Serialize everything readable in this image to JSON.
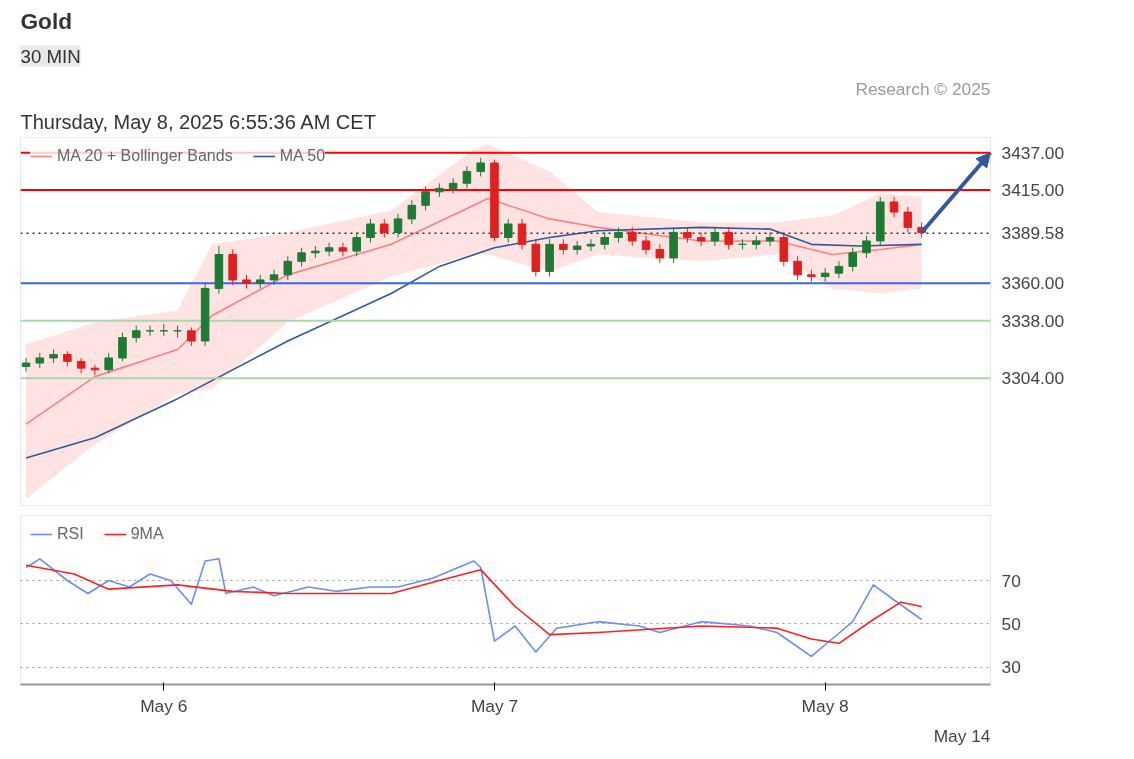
{
  "chart_data": [
    {
      "type": "candlestick",
      "title": "Gold",
      "subtitle": "30 MIN",
      "annotations": [
        "Thursday, May 8, 2025 6:55:36 AM CET",
        "Research © 2025"
      ],
      "x": [
        "2025-05-05T14:00",
        "2025-05-05T15:00",
        "2025-05-05T16:00",
        "2025-05-05T17:00",
        "2025-05-05T18:00",
        "2025-05-05T19:00",
        "2025-05-05T20:00",
        "2025-05-05T21:00",
        "2025-05-05T22:00",
        "2025-05-05T23:00",
        "2025-05-06T00:00",
        "2025-05-06T01:00",
        "2025-05-06T02:00",
        "2025-05-06T03:00",
        "2025-05-06T04:00",
        "2025-05-06T05:00",
        "2025-05-06T06:00",
        "2025-05-06T07:00",
        "2025-05-06T08:00",
        "2025-05-06T09:00",
        "2025-05-06T10:00",
        "2025-05-06T11:00",
        "2025-05-06T12:00",
        "2025-05-06T13:00",
        "2025-05-06T14:00",
        "2025-05-06T15:00",
        "2025-05-06T16:00",
        "2025-05-06T17:00",
        "2025-05-06T18:00",
        "2025-05-06T19:00",
        "2025-05-06T20:00",
        "2025-05-06T21:00",
        "2025-05-06T22:00",
        "2025-05-06T23:00",
        "2025-05-07T00:00",
        "2025-05-07T01:00",
        "2025-05-07T02:00",
        "2025-05-07T03:00",
        "2025-05-07T04:00",
        "2025-05-07T05:00",
        "2025-05-07T06:00",
        "2025-05-07T07:00",
        "2025-05-07T08:00",
        "2025-05-07T09:00",
        "2025-05-07T10:00",
        "2025-05-07T11:00",
        "2025-05-07T12:00",
        "2025-05-07T13:00",
        "2025-05-07T14:00",
        "2025-05-07T15:00",
        "2025-05-07T16:00",
        "2025-05-07T17:00",
        "2025-05-07T18:00",
        "2025-05-07T19:00",
        "2025-05-07T20:00",
        "2025-05-07T21:00",
        "2025-05-07T22:00",
        "2025-05-07T23:00",
        "2025-05-08T00:00",
        "2025-05-08T01:00",
        "2025-05-08T02:00",
        "2025-05-08T03:00",
        "2025-05-08T04:00",
        "2025-05-08T05:00",
        "2025-05-08T06:00",
        "2025-05-08T07:00"
      ],
      "ohlc": [
        [
          3311,
          3316,
          3308,
          3313
        ],
        [
          3313,
          3319,
          3310,
          3316
        ],
        [
          3316,
          3321,
          3313,
          3318
        ],
        [
          3318,
          3320,
          3311,
          3314
        ],
        [
          3314,
          3316,
          3307,
          3310
        ],
        [
          3310,
          3312,
          3306,
          3309
        ],
        [
          3309,
          3319,
          3307,
          3316
        ],
        [
          3316,
          3331,
          3314,
          3328
        ],
        [
          3328,
          3335,
          3325,
          3332
        ],
        [
          3332,
          3335,
          3329,
          3332
        ],
        [
          3332,
          3336,
          3329,
          3332
        ],
        [
          3332,
          3335,
          3328,
          3332
        ],
        [
          3332,
          3334,
          3323,
          3326
        ],
        [
          3326,
          3360,
          3323,
          3357
        ],
        [
          3357,
          3382,
          3354,
          3377
        ],
        [
          3377,
          3380,
          3359,
          3362
        ],
        [
          3362,
          3365,
          3357,
          3360
        ],
        [
          3360,
          3365,
          3357,
          3362
        ],
        [
          3362,
          3368,
          3359,
          3365
        ],
        [
          3365,
          3376,
          3362,
          3373
        ],
        [
          3373,
          3381,
          3370,
          3378
        ],
        [
          3378,
          3382,
          3375,
          3379
        ],
        [
          3379,
          3384,
          3376,
          3381
        ],
        [
          3381,
          3384,
          3376,
          3379
        ],
        [
          3379,
          3390,
          3376,
          3387
        ],
        [
          3387,
          3398,
          3384,
          3395
        ],
        [
          3395,
          3398,
          3387,
          3390
        ],
        [
          3390,
          3401,
          3387,
          3398
        ],
        [
          3398,
          3409,
          3395,
          3406
        ],
        [
          3406,
          3417,
          3403,
          3414
        ],
        [
          3414,
          3419,
          3411,
          3416
        ],
        [
          3416,
          3422,
          3413,
          3419
        ],
        [
          3419,
          3429,
          3416,
          3426
        ],
        [
          3426,
          3434,
          3423,
          3431
        ],
        [
          3431,
          3433,
          3385,
          3387
        ],
        [
          3387,
          3398,
          3384,
          3395
        ],
        [
          3395,
          3398,
          3380,
          3383
        ],
        [
          3383,
          3386,
          3364,
          3367
        ],
        [
          3367,
          3386,
          3364,
          3383
        ],
        [
          3383,
          3386,
          3377,
          3380
        ],
        [
          3380,
          3385,
          3377,
          3382
        ],
        [
          3382,
          3386,
          3379,
          3383
        ],
        [
          3383,
          3390,
          3380,
          3387
        ],
        [
          3387,
          3393,
          3384,
          3390
        ],
        [
          3390,
          3393,
          3382,
          3385
        ],
        [
          3385,
          3388,
          3377,
          3380
        ],
        [
          3380,
          3383,
          3372,
          3375
        ],
        [
          3375,
          3393,
          3372,
          3390
        ],
        [
          3390,
          3393,
          3384,
          3387
        ],
        [
          3387,
          3390,
          3382,
          3385
        ],
        [
          3385,
          3393,
          3382,
          3390
        ],
        [
          3390,
          3393,
          3380,
          3383
        ],
        [
          3383,
          3386,
          3380,
          3383
        ],
        [
          3383,
          3388,
          3380,
          3385
        ],
        [
          3385,
          3390,
          3382,
          3387
        ],
        [
          3387,
          3390,
          3370,
          3373
        ],
        [
          3373,
          3376,
          3362,
          3365
        ],
        [
          3365,
          3368,
          3361,
          3364
        ],
        [
          3364,
          3369,
          3361,
          3366
        ],
        [
          3366,
          3373,
          3363,
          3370
        ],
        [
          3370,
          3381,
          3367,
          3378
        ],
        [
          3378,
          3388,
          3375,
          3385
        ],
        [
          3385,
          3411,
          3382,
          3408
        ],
        [
          3408,
          3411,
          3399,
          3402
        ],
        [
          3402,
          3405,
          3390,
          3393
        ],
        [
          3393,
          3396,
          3387,
          3390
        ]
      ],
      "series": [
        {
          "name": "MA 20 + Bollinger Bands",
          "type": "line",
          "color": "#ff8080",
          "x": [
            "2025-05-05T14:00",
            "2025-05-05T19:00",
            "2025-05-06T01:00",
            "2025-05-06T03:30",
            "2025-05-06T09:00",
            "2025-05-06T16:30",
            "2025-05-06T22:30",
            "2025-05-06T23:30",
            "2025-05-07T04:00",
            "2025-05-07T07:30",
            "2025-05-07T15:00",
            "2025-05-07T20:30",
            "2025-05-08T00:30",
            "2025-05-08T04:00",
            "2025-05-08T07:00"
          ],
          "values": [
            3277,
            3305,
            3321,
            3341,
            3365,
            3383,
            3406,
            3410,
            3398,
            3393,
            3385,
            3385,
            3377,
            3380,
            3383
          ],
          "upper": [
            3324,
            3337,
            3344,
            3383,
            3390,
            3403,
            3439,
            3442,
            3426,
            3402,
            3396,
            3396,
            3400,
            3413,
            3411
          ],
          "lower": [
            3233,
            3265,
            3295,
            3298,
            3337,
            3364,
            3377,
            3377,
            3367,
            3377,
            3373,
            3377,
            3357,
            3354,
            3357
          ]
        },
        {
          "name": "MA 50",
          "type": "line",
          "color": "#2f5a9e",
          "x": [
            "2025-05-05T14:00",
            "2025-05-05T19:00",
            "2025-05-06T01:00",
            "2025-05-06T09:00",
            "2025-05-06T16:30",
            "2025-05-06T20:00",
            "2025-05-07T00:00",
            "2025-05-07T04:00",
            "2025-05-07T07:30",
            "2025-05-07T15:00",
            "2025-05-07T20:00",
            "2025-05-07T23:00",
            "2025-05-08T02:30",
            "2025-05-08T07:00"
          ],
          "values": [
            3257,
            3269,
            3292,
            3326,
            3354,
            3370,
            3381,
            3387,
            3391,
            3393,
            3392,
            3383,
            3382,
            3383
          ]
        }
      ],
      "ref_lines": [
        {
          "axis": "y",
          "value": 3437,
          "color": "#ff0000",
          "line_style": "solid"
        },
        {
          "axis": "y",
          "value": 3415,
          "color": "#ff0000",
          "line_style": "solid"
        },
        {
          "axis": "y",
          "value": 3389.58,
          "color": "#333333",
          "line_style": "dotted"
        },
        {
          "axis": "y",
          "value": 3360,
          "color": "#3366ff",
          "line_style": "solid"
        },
        {
          "axis": "y",
          "value": 3338,
          "color": "#a8d8a8",
          "line_style": "solid"
        },
        {
          "axis": "y",
          "value": 3304,
          "color": "#a8d8a8",
          "line_style": "solid"
        }
      ],
      "xlim": [
        "2025-05-05T13:36",
        "2025-05-08T12:00"
      ],
      "ylim": [
        3229,
        3446
      ],
      "yticks": [
        {
          "value": 3437,
          "label": "3437.00"
        },
        {
          "value": 3415,
          "label": "3415.00"
        },
        {
          "value": 3389.58,
          "label": "3389.58"
        },
        {
          "value": 3360,
          "label": "3360.00"
        },
        {
          "value": 3338,
          "label": "3338.00"
        },
        {
          "value": 3304,
          "label": "3304.00"
        }
      ],
      "tick_labels": "y",
      "grid": false,
      "legend": "top left"
    },
    {
      "type": "line",
      "annotations": [
        "May 14"
      ],
      "series": [
        {
          "name": "RSI",
          "color": "#6b8ff0",
          "x": [
            "2025-05-05T14:00",
            "2025-05-05T15:00",
            "2025-05-05T17:00",
            "2025-05-05T18:30",
            "2025-05-05T20:00",
            "2025-05-05T21:30",
            "2025-05-05T23:00",
            "2025-05-06T00:30",
            "2025-05-06T02:00",
            "2025-05-06T03:00",
            "2025-05-06T04:00",
            "2025-05-06T04:30",
            "2025-05-06T06:30",
            "2025-05-06T08:00",
            "2025-05-06T10:30",
            "2025-05-06T12:30",
            "2025-05-06T15:00",
            "2025-05-06T17:00",
            "2025-05-06T19:30",
            "2025-05-06T22:30",
            "2025-05-06T23:00",
            "2025-05-07T00:00",
            "2025-05-07T01:30",
            "2025-05-07T03:00",
            "2025-05-07T04:30",
            "2025-05-07T07:30",
            "2025-05-07T10:30",
            "2025-05-07T12:00",
            "2025-05-07T15:00",
            "2025-05-07T18:30",
            "2025-05-07T20:30",
            "2025-05-07T23:00",
            "2025-05-08T00:30",
            "2025-05-08T02:00",
            "2025-05-08T03:30",
            "2025-05-08T05:00",
            "2025-05-08T07:00"
          ],
          "values": [
            76,
            80,
            70,
            64,
            70,
            67,
            73,
            70,
            59,
            79,
            80,
            64,
            67,
            63,
            67,
            65,
            67,
            67,
            71,
            79,
            76,
            42,
            49,
            37,
            48,
            51,
            49,
            46,
            51,
            49,
            46,
            35,
            43,
            51,
            68,
            61,
            52
          ]
        },
        {
          "name": "9MA",
          "color": "#ff2020",
          "x": [
            "2025-05-05T14:00",
            "2025-05-05T17:30",
            "2025-05-05T20:00",
            "2025-05-06T01:00",
            "2025-05-06T05:00",
            "2025-05-06T09:00",
            "2025-05-06T16:30",
            "2025-05-06T20:00",
            "2025-05-06T23:00",
            "2025-05-07T01:30",
            "2025-05-07T04:00",
            "2025-05-07T07:30",
            "2025-05-07T15:00",
            "2025-05-07T20:30",
            "2025-05-07T23:00",
            "2025-05-08T01:00",
            "2025-05-08T03:30",
            "2025-05-08T05:30",
            "2025-05-08T07:00"
          ],
          "values": [
            77,
            73,
            66,
            68,
            65,
            64,
            64,
            70,
            75,
            58,
            45,
            46,
            49,
            48,
            43,
            41,
            52,
            60,
            58
          ]
        }
      ],
      "xlim": [
        "2025-05-05T13:36",
        "2025-05-08T12:00"
      ],
      "ylim": [
        22,
        100
      ],
      "yticks": [
        30,
        50,
        70
      ],
      "xticks": [
        {
          "value": "2025-05-06",
          "label": "May 6"
        },
        {
          "value": "2025-05-07",
          "label": "May 7"
        },
        {
          "value": "2025-05-08",
          "label": "May 8"
        }
      ],
      "grid": "y",
      "legend": "top left"
    }
  ]
}
